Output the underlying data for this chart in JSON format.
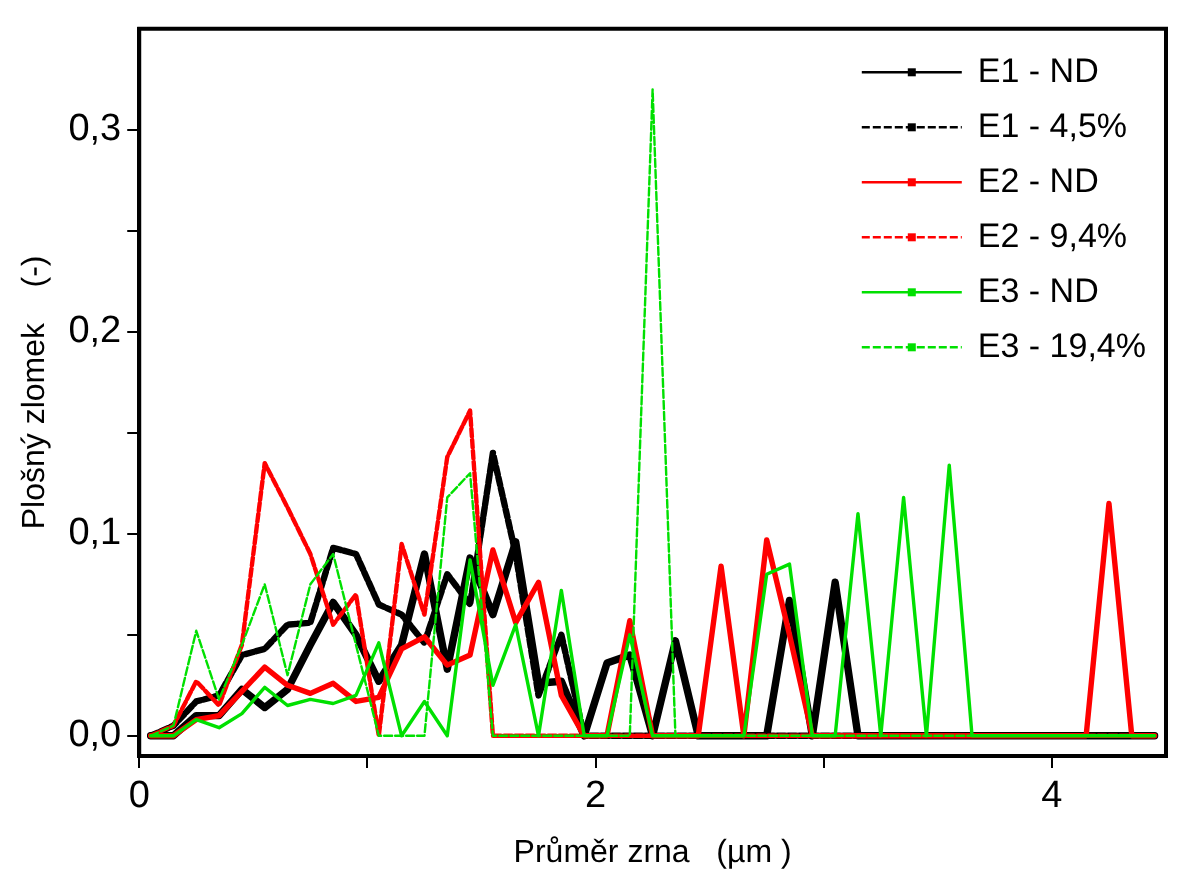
{
  "chart_data": {
    "type": "line",
    "xlabel": "Průměr zrna   (µm )",
    "ylabel": "Plošný zlomek    (-)",
    "legend": "top right",
    "x": [
      0.05,
      0.15,
      0.25,
      0.35,
      0.45,
      0.55,
      0.65,
      0.75,
      0.85,
      0.95,
      1.05,
      1.15,
      1.25,
      1.35,
      1.45,
      1.55,
      1.65,
      1.75,
      1.85,
      1.95,
      2.05,
      2.15,
      2.25,
      2.35,
      2.45,
      2.55,
      2.65,
      2.75,
      2.85,
      2.95,
      3.05,
      3.15,
      3.25,
      3.35,
      3.45,
      3.55,
      3.65,
      3.75,
      3.85,
      3.95,
      4.05,
      4.15,
      4.25,
      4.35,
      4.45
    ],
    "xlim": [
      0,
      4.5
    ],
    "xticks": [
      0,
      {
        "value": 1,
        "label": null
      },
      2,
      {
        "value": 3,
        "label": null
      },
      4
    ],
    "ylim": [
      -0.01,
      0.35
    ],
    "yticks": [
      {
        "value": 0,
        "label": "0,0"
      },
      {
        "value": 0.05,
        "label": null
      },
      {
        "value": 0.1,
        "label": "0,1"
      },
      {
        "value": 0.15,
        "label": null
      },
      {
        "value": 0.2,
        "label": "0,2"
      },
      {
        "value": 0.25,
        "label": null
      },
      {
        "value": 0.3,
        "label": "0,3"
      }
    ],
    "series": [
      {
        "name": "E1 - ND",
        "color": "#000000",
        "line_style": "solid",
        "values": [
          0,
          0,
          0.01,
          0.01,
          0.023,
          0.014,
          0.023,
          0.045,
          0.066,
          0.05,
          0.027,
          0.045,
          0.09,
          0.033,
          0.088,
          0.06,
          0.096,
          0.026,
          0.027,
          0,
          0.036,
          0.04,
          0,
          0.047,
          0,
          0,
          0,
          0,
          0.067,
          0,
          0.076,
          0,
          0,
          0,
          0,
          0,
          0,
          0,
          0,
          0,
          0,
          0,
          0,
          0,
          0
        ]
      },
      {
        "name": "E1 - 4,5%",
        "color": "#000000",
        "line_style": "dashed",
        "values": [
          0,
          0.005,
          0.017,
          0.02,
          0.04,
          0.043,
          0.055,
          0.056,
          0.093,
          0.09,
          0.065,
          0.06,
          0.046,
          0.08,
          0.065,
          0.14,
          0.09,
          0.02,
          0.05,
          0,
          0,
          0,
          0,
          0,
          0,
          0,
          0,
          0,
          0,
          0,
          0,
          0,
          0,
          0,
          0,
          0,
          0,
          0,
          0,
          0,
          0,
          0,
          0,
          0,
          0
        ]
      },
      {
        "name": "E2 - ND",
        "color": "#ff0000",
        "line_style": "solid",
        "values": [
          0,
          0,
          0.008,
          0.01,
          0.022,
          0.034,
          0.025,
          0.021,
          0.026,
          0.017,
          0.019,
          0.043,
          0.049,
          0.035,
          0.04,
          0.092,
          0.056,
          0.076,
          0.02,
          0,
          0,
          0.057,
          0,
          0,
          0,
          0.084,
          0,
          0.097,
          0.05,
          0,
          0,
          0,
          0,
          0,
          0,
          0,
          0,
          0,
          0,
          0,
          0,
          0,
          0.115,
          0,
          0
        ]
      },
      {
        "name": "E2 - 9,4%",
        "color": "#ff0000",
        "line_style": "dashed",
        "values": [
          0,
          0.005,
          0.027,
          0.015,
          0.045,
          0.135,
          0.113,
          0.09,
          0.055,
          0.07,
          0,
          0.095,
          0.06,
          0.138,
          0.161,
          0,
          0,
          0,
          0,
          0,
          0,
          0,
          0,
          0,
          0,
          0,
          0,
          0,
          0,
          0,
          0,
          0,
          0,
          0,
          0,
          0,
          0,
          0,
          0,
          0,
          0,
          0,
          0,
          0,
          0
        ]
      },
      {
        "name": "E3 - ND",
        "color": "#00e000",
        "line_style": "solid",
        "values": [
          0,
          0,
          0.008,
          0.004,
          0.011,
          0.024,
          0.015,
          0.018,
          0.016,
          0.02,
          0.046,
          0,
          0.017,
          0,
          0.087,
          0.025,
          0.055,
          0,
          0.072,
          0,
          0,
          0.05,
          0,
          0,
          0,
          0,
          0,
          0.08,
          0.085,
          0,
          0,
          0.11,
          0,
          0.118,
          0,
          0.134,
          0,
          0,
          0,
          0,
          0,
          0,
          0,
          0,
          0
        ]
      },
      {
        "name": "E3 - 19,4%",
        "color": "#00e000",
        "line_style": "dashed",
        "values": [
          0,
          0.005,
          0.052,
          0.018,
          0.045,
          0.075,
          0.03,
          0.075,
          0.09,
          0.045,
          0,
          0,
          0,
          0.118,
          0.13,
          0,
          0,
          0,
          0,
          0,
          0,
          0,
          0.32,
          0,
          0,
          0,
          0,
          0,
          0,
          0,
          0,
          0,
          0,
          0,
          0,
          0,
          0,
          0,
          0,
          0,
          0,
          0,
          0,
          0,
          0
        ]
      }
    ]
  }
}
